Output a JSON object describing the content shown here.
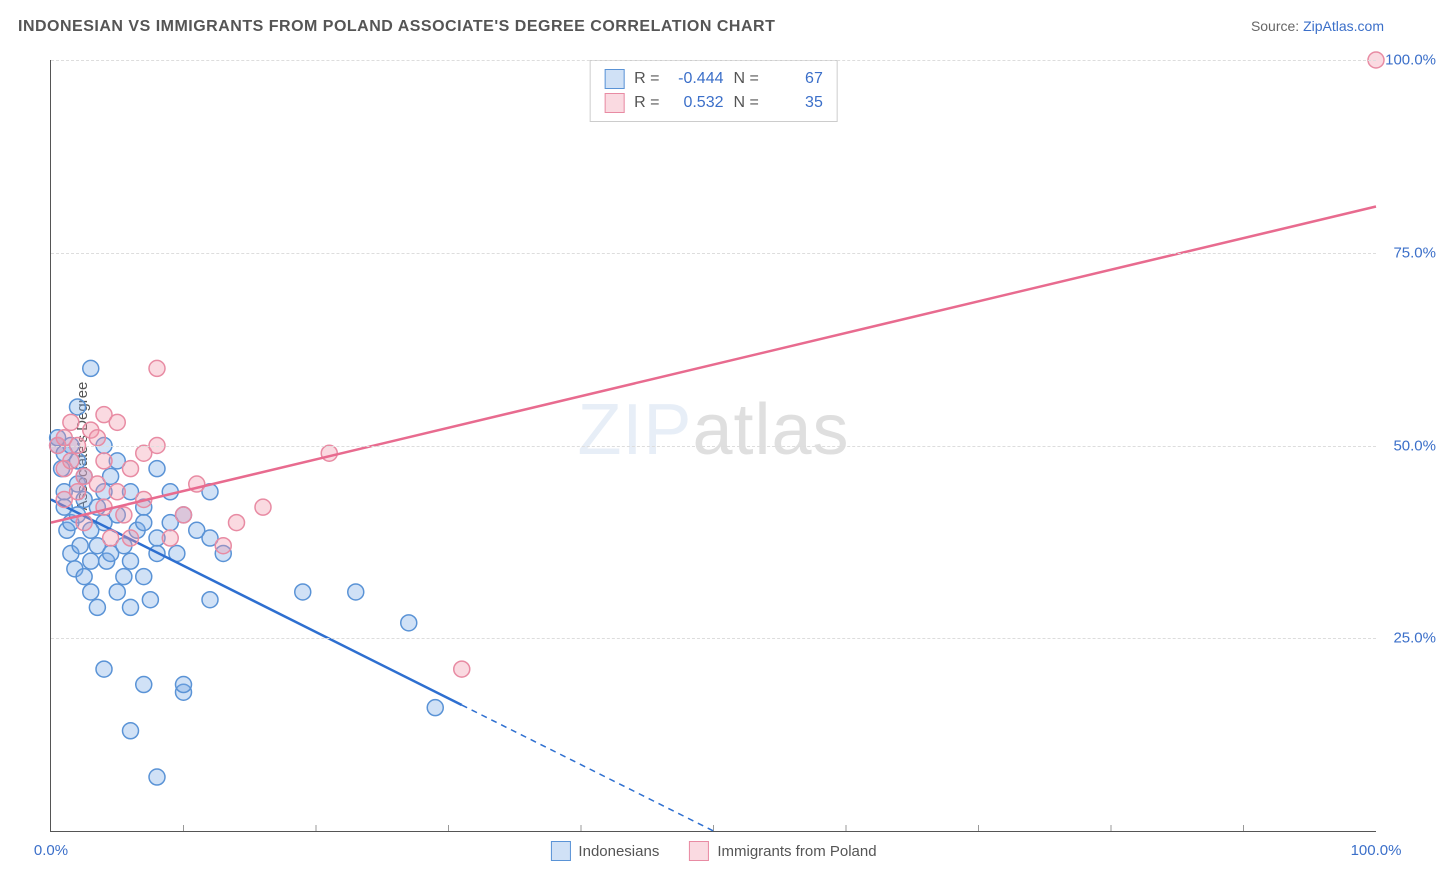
{
  "title": "INDONESIAN VS IMMIGRANTS FROM POLAND ASSOCIATE'S DEGREE CORRELATION CHART",
  "source_label": "Source:",
  "source_name": "ZipAtlas.com",
  "ylabel": "Associate's Degree",
  "watermark_zip": "ZIP",
  "watermark_atlas": "atlas",
  "chart": {
    "type": "scatter",
    "xlim": [
      0,
      100
    ],
    "ylim": [
      0,
      100
    ],
    "xtick_positions": [
      0,
      100
    ],
    "xtick_labels": [
      "0.0%",
      "100.0%"
    ],
    "ytick_positions": [
      25,
      50,
      75,
      100
    ],
    "ytick_labels": [
      "25.0%",
      "50.0%",
      "75.0%",
      "100.0%"
    ],
    "minor_vgrid": [
      10,
      20,
      30,
      40,
      50,
      60,
      70,
      80,
      90
    ],
    "grid_color": "#dddddd",
    "background_color": "#ffffff",
    "marker_radius": 8,
    "marker_stroke_width": 1.5,
    "trendline_width": 2.5
  },
  "series": [
    {
      "name": "Indonesians",
      "color_fill": "rgba(120, 170, 230, 0.35)",
      "color_stroke": "#5a93d6",
      "line_color": "#2e6fd0",
      "R": "-0.444",
      "N": "67",
      "trend": {
        "x1": 0,
        "y1": 43,
        "x2": 50,
        "y2": 0
      },
      "trend_solid_until_x": 31,
      "points": [
        [
          0.5,
          50
        ],
        [
          0.5,
          51
        ],
        [
          0.8,
          47
        ],
        [
          1,
          44
        ],
        [
          1,
          49
        ],
        [
          1,
          42
        ],
        [
          1.2,
          39
        ],
        [
          1.5,
          40
        ],
        [
          1.5,
          36
        ],
        [
          1.5,
          50
        ],
        [
          1.8,
          34
        ],
        [
          2,
          45
        ],
        [
          2,
          41
        ],
        [
          2,
          48
        ],
        [
          2,
          55
        ],
        [
          2.2,
          37
        ],
        [
          2.5,
          43
        ],
        [
          2.5,
          33
        ],
        [
          2.5,
          46
        ],
        [
          3,
          39
        ],
        [
          3,
          35
        ],
        [
          3,
          31
        ],
        [
          3,
          60
        ],
        [
          3.5,
          37
        ],
        [
          3.5,
          42
        ],
        [
          3.5,
          29
        ],
        [
          4,
          44
        ],
        [
          4,
          50
        ],
        [
          4,
          40
        ],
        [
          4.2,
          35
        ],
        [
          4.5,
          36
        ],
        [
          4.5,
          46
        ],
        [
          5,
          31
        ],
        [
          5,
          41
        ],
        [
          5,
          48
        ],
        [
          5.5,
          37
        ],
        [
          5.5,
          33
        ],
        [
          6,
          35
        ],
        [
          6,
          44
        ],
        [
          6,
          29
        ],
        [
          6.5,
          39
        ],
        [
          7,
          42
        ],
        [
          7,
          40
        ],
        [
          7,
          33
        ],
        [
          7.5,
          30
        ],
        [
          8,
          47
        ],
        [
          8,
          36
        ],
        [
          8,
          38
        ],
        [
          8,
          7
        ],
        [
          9,
          44
        ],
        [
          9,
          40
        ],
        [
          9.5,
          36
        ],
        [
          10,
          41
        ],
        [
          10,
          18
        ],
        [
          11,
          39
        ],
        [
          12,
          44
        ],
        [
          12,
          38
        ],
        [
          12,
          30
        ],
        [
          13,
          36
        ],
        [
          4,
          21
        ],
        [
          6,
          13
        ],
        [
          7,
          19
        ],
        [
          19,
          31
        ],
        [
          23,
          31
        ],
        [
          27,
          27
        ],
        [
          29,
          16
        ],
        [
          10,
          19
        ]
      ]
    },
    {
      "name": "Immigrants from Poland",
      "color_fill": "rgba(240, 150, 170, 0.35)",
      "color_stroke": "#e88ba3",
      "line_color": "#e86b8f",
      "R": "0.532",
      "N": "35",
      "trend": {
        "x1": 0,
        "y1": 40,
        "x2": 100,
        "y2": 81
      },
      "trend_solid_until_x": 100,
      "points": [
        [
          0.5,
          50
        ],
        [
          1,
          51
        ],
        [
          1,
          47
        ],
        [
          1,
          43
        ],
        [
          1.5,
          53
        ],
        [
          1.5,
          48
        ],
        [
          2,
          44
        ],
        [
          2,
          50
        ],
        [
          2.5,
          40
        ],
        [
          2.5,
          46
        ],
        [
          3,
          52
        ],
        [
          3.5,
          45
        ],
        [
          3.5,
          51
        ],
        [
          4,
          42
        ],
        [
          4,
          48
        ],
        [
          4,
          54
        ],
        [
          4.5,
          38
        ],
        [
          5,
          44
        ],
        [
          5,
          53
        ],
        [
          5.5,
          41
        ],
        [
          6,
          47
        ],
        [
          6,
          38
        ],
        [
          7,
          43
        ],
        [
          7,
          49
        ],
        [
          8,
          50
        ],
        [
          8,
          60
        ],
        [
          9,
          38
        ],
        [
          10,
          41
        ],
        [
          11,
          45
        ],
        [
          13,
          37
        ],
        [
          14,
          40
        ],
        [
          16,
          42
        ],
        [
          21,
          49
        ],
        [
          31,
          21
        ],
        [
          100,
          100
        ]
      ]
    }
  ],
  "stats_labels": {
    "R": "R =",
    "N": "N ="
  },
  "legend_label_1": "Indonesians",
  "legend_label_2": "Immigrants from Poland"
}
